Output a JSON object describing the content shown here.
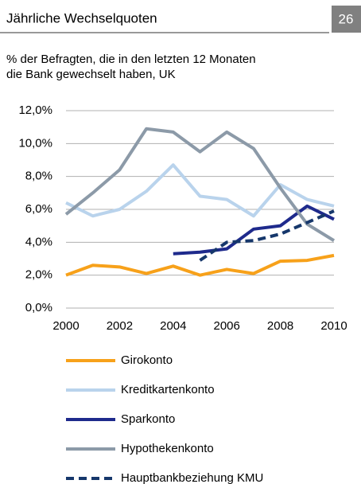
{
  "chart_data": {
    "type": "line",
    "title": "Jährliche Wechselquoten",
    "page_number": "26",
    "subtitle": [
      "% der Befragten, die in den letzten 12 Monaten",
      "die Bank gewechselt haben, UK"
    ],
    "x": [
      2000,
      2001,
      2002,
      2003,
      2004,
      2005,
      2006,
      2007,
      2008,
      2009,
      2010
    ],
    "xlim": [
      2000,
      2010
    ],
    "xticks": [
      2000,
      2002,
      2004,
      2006,
      2008,
      2010
    ],
    "ylim": [
      0,
      12
    ],
    "yticks": [
      {
        "value": 0,
        "label": "0,0%"
      },
      {
        "value": 2,
        "label": "2,0%"
      },
      {
        "value": 4,
        "label": "4,0%"
      },
      {
        "value": 6,
        "label": "6,0%"
      },
      {
        "value": 8,
        "label": "8,0%"
      },
      {
        "value": 10,
        "label": "10,0%"
      },
      {
        "value": 12,
        "label": "12,0%"
      }
    ],
    "grid": true,
    "series": [
      {
        "name": "Girokonto",
        "color": "#f7a11a",
        "style": "solid",
        "values": [
          2.0,
          2.6,
          2.5,
          2.1,
          2.55,
          2.0,
          2.35,
          2.1,
          2.85,
          2.9,
          3.2
        ]
      },
      {
        "name": "Kreditkartenkonto",
        "color": "#b9d3ec",
        "style": "solid",
        "values": [
          6.4,
          5.6,
          6.0,
          7.1,
          8.7,
          6.8,
          6.6,
          5.6,
          7.5,
          6.6,
          6.2
        ]
      },
      {
        "name": "Sparkonto",
        "color": "#1e2a8c",
        "style": "solid",
        "values": [
          null,
          null,
          null,
          null,
          3.3,
          3.4,
          3.6,
          4.8,
          5.0,
          6.2,
          5.4
        ]
      },
      {
        "name": "Hypothekenkonto",
        "color": "#8c9aa8",
        "style": "solid",
        "values": [
          5.7,
          7.0,
          8.4,
          10.9,
          10.7,
          9.5,
          10.7,
          9.7,
          7.3,
          5.1,
          4.1
        ]
      },
      {
        "name": "Hauptbankbeziehung KMU",
        "color": "#16376b",
        "style": "dashed",
        "values": [
          null,
          null,
          null,
          null,
          null,
          2.9,
          4.0,
          4.1,
          4.5,
          5.2,
          5.9
        ]
      }
    ]
  }
}
